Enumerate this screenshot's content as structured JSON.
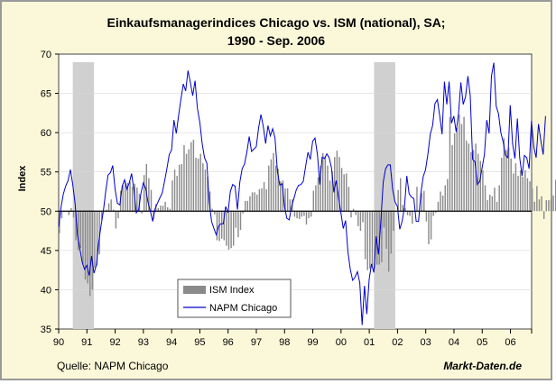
{
  "chart_data": {
    "type": "bar+line",
    "title_line1": "Einkaufsmanagerindices Chicago vs. ISM (national), SA;",
    "title_line2": "1990 - Sep. 2006",
    "ylabel": "Index",
    "ylim": [
      35,
      70
    ],
    "yticks": [
      35,
      40,
      45,
      50,
      55,
      60,
      65,
      70
    ],
    "baseline": 50,
    "xlim": [
      1990,
      2006.75
    ],
    "xticks": [
      "90",
      "91",
      "92",
      "93",
      "94",
      "95",
      "96",
      "97",
      "98",
      "99",
      "00",
      "01",
      "02",
      "03",
      "04",
      "05",
      "06"
    ],
    "recessions": [
      [
        1990.5,
        1991.25
      ],
      [
        2001.17,
        2001.92
      ]
    ],
    "source": "Quelle: NAPM Chicago",
    "brand": "Markt-Daten.de",
    "legend": [
      {
        "name": "ISM Index",
        "kind": "bar"
      },
      {
        "name": "NAPM Chicago",
        "kind": "line"
      }
    ],
    "colors": {
      "bars": "#8a8a8a",
      "line": "#0000cc",
      "recession": "#d0d0d0",
      "background": "#fbf8d9"
    },
    "series": [
      {
        "name": "ISM Index",
        "kind": "bar",
        "x_start": 1990.0,
        "step": 0.0833,
        "values": [
          47.2,
          49.1,
          49.9,
          50.0,
          49.5,
          50.4,
          49.2,
          46.3,
          45.0,
          45.3,
          43.2,
          41.3,
          40.8,
          39.2,
          40.0,
          42.8,
          43.1,
          44.5,
          48.9,
          50.0,
          50.2,
          51.0,
          51.5,
          50.2,
          47.8,
          49.1,
          52.6,
          53.3,
          53.8,
          53.6,
          53.8,
          53.1,
          53.5,
          53.0,
          52.2,
          49.7,
          54.6,
          56.0,
          54.2,
          52.7,
          49.0,
          50.9,
          50.4,
          50.7,
          50.7,
          51.2,
          50.5,
          50.3,
          53.9,
          55.3,
          54.5,
          55.9,
          56.0,
          58.4,
          57.3,
          57.9,
          58.8,
          59.1,
          56.8,
          56.7,
          57.3,
          56.1,
          55.3,
          54.4,
          52.5,
          50.3,
          49.6,
          46.3,
          46.2,
          46.5,
          46.3,
          45.6,
          45.1,
          45.3,
          45.6,
          47.9,
          46.7,
          47.6,
          49.7,
          51.3,
          51.3,
          51.9,
          52.4,
          52.4,
          52.1,
          52.8,
          52.9,
          53.7,
          52.8,
          55.8,
          56.6,
          57.4,
          55.8,
          55.4,
          53.8,
          53.9,
          52.9,
          52.9,
          51.5,
          51.5,
          49.3,
          49.1,
          49.0,
          49.3,
          49.4,
          48.3,
          49.1,
          49.3,
          52.6,
          53.3,
          54.3,
          55.8,
          57.4,
          57.0,
          55.8,
          53.9,
          55.1,
          56.9,
          57.7,
          56.9,
          55.5,
          54.7,
          54.8,
          53.1,
          49.2,
          50.3,
          49.5,
          48.1,
          47.5,
          48.6,
          43.9,
          42.5,
          42.7,
          43.1,
          42.7,
          43.2,
          43.2,
          43.5,
          47.9,
          45.2,
          42.3,
          44.6,
          47.5,
          49.9,
          52.7,
          54.2,
          50.8,
          50.4,
          49.5,
          49.4,
          48.4,
          50.0,
          53.1,
          50.1,
          52.3,
          52.6,
          48.7,
          45.8,
          46.4,
          49.4,
          49.8,
          51.2,
          52.5,
          52.0,
          53.3,
          54.1,
          62.0,
          58.4,
          59.9,
          60.6,
          62.3,
          61.1,
          62.0,
          59.0,
          58.6,
          57.5,
          57.8,
          58.6,
          57.3,
          56.4,
          55.2,
          53.3,
          51.4,
          52.1,
          51.9,
          53.0,
          51.2,
          53.3,
          56.8,
          59.3,
          57.8,
          58.1,
          56.7,
          54.8,
          56.1,
          54.5,
          55.2,
          54.4,
          55.2,
          54.2,
          53.8,
          52.9,
          51.2,
          53.2,
          51.5,
          51.9,
          49.0,
          51.4,
          51.4,
          51.5,
          52.0,
          54.0,
          54.5
        ]
      },
      {
        "name": "NAPM Chicago",
        "kind": "line",
        "x_start": 1990.0,
        "step": 0.0833,
        "values": [
          48.0,
          50.5,
          52.2,
          53.2,
          53.9,
          55.3,
          53.4,
          51.0,
          47.0,
          45.2,
          43.5,
          42.6,
          43.1,
          41.8,
          44.3,
          42.1,
          43.1,
          46.0,
          48.1,
          50.0,
          52.5,
          54.6,
          54.9,
          55.8,
          52.8,
          51.0,
          50.8,
          53.2,
          54.0,
          52.8,
          53.6,
          54.8,
          52.7,
          49.8,
          50.2,
          52.3,
          53.6,
          52.9,
          51.1,
          50.0,
          48.7,
          50.3,
          51.0,
          51.7,
          52.3,
          53.8,
          55.4,
          57.2,
          57.8,
          61.6,
          59.9,
          62.2,
          64.3,
          66.2,
          65.3,
          67.9,
          66.4,
          64.7,
          66.6,
          63.1,
          61.3,
          58.6,
          56.8,
          56.1,
          51.2,
          48.7,
          47.8,
          47.0,
          48.1,
          48.4,
          48.4,
          50.6,
          49.8,
          52.5,
          53.4,
          53.2,
          50.2,
          53.7,
          55.4,
          56.0,
          57.5,
          59.5,
          57.6,
          57.9,
          58.2,
          60.6,
          62.3,
          60.8,
          58.6,
          60.9,
          59.6,
          60.5,
          59.3,
          55.0,
          53.3,
          53.5,
          50.6,
          49.1,
          48.9,
          50.6,
          51.6,
          52.7,
          53.3,
          53.4,
          53.8,
          55.7,
          57.5,
          56.6,
          58.9,
          59.3,
          57.2,
          53.4,
          56.9,
          56.7,
          57.3,
          56.8,
          55.5,
          52.4,
          53.9,
          51.7,
          49.8,
          47.8,
          48.8,
          44.8,
          42.6,
          41.2,
          41.6,
          42.3,
          40.9,
          35.5,
          40.5,
          36.9,
          41.3,
          43.3,
          42.2,
          46.8,
          44.5,
          48.9,
          53.7,
          55.4,
          55.9,
          55.9,
          52.8,
          51.2,
          50.6,
          47.7,
          48.7,
          50.5,
          54.5,
          52.2,
          51.8,
          51.6,
          48.7,
          48.7,
          52.3,
          54.4,
          55.3,
          57.3,
          59.8,
          60.9,
          63.7,
          64.2,
          62.1,
          59.8,
          66.5,
          63.6,
          66.5,
          61.2,
          62.1,
          60.1,
          62.4,
          66.4,
          63.6,
          64.6,
          67.2,
          64.7,
          56.6,
          56.3,
          53.4,
          53.8,
          55.5,
          57.2,
          61.6,
          59.9,
          67.2,
          68.9,
          63.4,
          62.4,
          60.0,
          58.8,
          57.1,
          56.8,
          63.5,
          58.6,
          56.7,
          61.8,
          56.8,
          54.5,
          57.1,
          56.8,
          55.4,
          61.5,
          58.2,
          56.8,
          61.1,
          59.0,
          57.2,
          62.1
        ]
      }
    ]
  }
}
